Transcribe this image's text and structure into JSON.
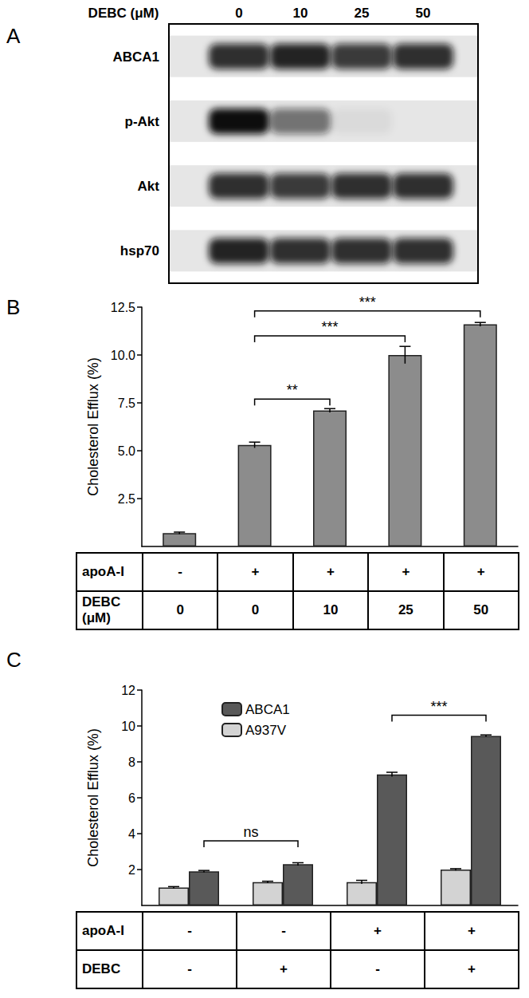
{
  "blot": {
    "panel": "A",
    "header_label": "DEBC (μM)",
    "lanes": [
      "0",
      "10",
      "25",
      "50"
    ],
    "rows": [
      {
        "label": "ABCA1",
        "intensity": [
          0.85,
          0.9,
          0.8,
          0.85
        ]
      },
      {
        "label": "p-Akt",
        "intensity": [
          1.0,
          0.55,
          0.05,
          0.0
        ]
      },
      {
        "label": "Akt",
        "intensity": [
          0.85,
          0.8,
          0.85,
          0.85
        ]
      },
      {
        "label": "hsp70",
        "intensity": [
          0.9,
          0.85,
          0.85,
          0.85
        ]
      }
    ]
  },
  "chart_data": [
    {
      "panel": "B",
      "type": "bar",
      "y_label": "Cholesterol Efflux (%)",
      "categories": [
        null,
        null,
        null,
        null,
        null
      ],
      "values": [
        0.7,
        5.3,
        7.1,
        10.0,
        11.6
      ],
      "errors": [
        0.05,
        0.15,
        0.1,
        0.45,
        0.1
      ],
      "color": "#8c8c8c",
      "ylim": [
        0,
        12.5
      ],
      "yticks": [
        2.5,
        {
          "value": 5,
          "label": "5.0"
        },
        7.5,
        {
          "value": 10,
          "label": "10.0"
        },
        12.5
      ],
      "grid": false,
      "x_table": [
        {
          "label": "apoA-I",
          "cells": [
            "-",
            "+",
            "+",
            "+",
            "+"
          ]
        },
        {
          "label": "DEBC (μM)",
          "cells": [
            "0",
            "0",
            "10",
            "25",
            "50"
          ]
        }
      ],
      "annotations": [
        {
          "from": 1,
          "to": 2,
          "y": 7.7,
          "label": "**"
        },
        {
          "from": 1,
          "to": 3,
          "y": 11.0,
          "label": "***"
        },
        {
          "from": 1,
          "to": 4,
          "y": 12.3,
          "label": "***"
        }
      ]
    },
    {
      "panel": "C",
      "type": "bar",
      "y_label": "Cholesterol Efflux (%)",
      "categories": [
        null,
        null,
        null,
        null
      ],
      "series": [
        {
          "name": "ABCA1",
          "color": "#595959",
          "values": [
            1.9,
            2.3,
            7.3,
            9.45
          ],
          "errors": [
            0.05,
            0.08,
            0.12,
            0.05
          ]
        },
        {
          "name": "A937V",
          "color": "#d3d3d3",
          "values": [
            1.0,
            1.3,
            1.3,
            2.0
          ],
          "errors": [
            0.05,
            0.05,
            0.1,
            0.05
          ]
        }
      ],
      "ylim": [
        0,
        12
      ],
      "yticks": [
        2,
        4,
        6,
        8,
        10,
        12
      ],
      "grid": false,
      "legend": "top-left",
      "x_table": [
        {
          "label": "apoA-I",
          "cells": [
            "-",
            "-",
            "+",
            "+"
          ]
        },
        {
          "label": "DEBC",
          "cells": [
            "-",
            "+",
            "-",
            "+"
          ]
        }
      ],
      "annotations": [
        {
          "from": 0,
          "to": 1,
          "series": "ABCA1",
          "y": 3.6,
          "label": "ns"
        },
        {
          "from": 2,
          "to": 3,
          "series": "ABCA1",
          "y": 10.6,
          "label": "***"
        }
      ]
    }
  ]
}
